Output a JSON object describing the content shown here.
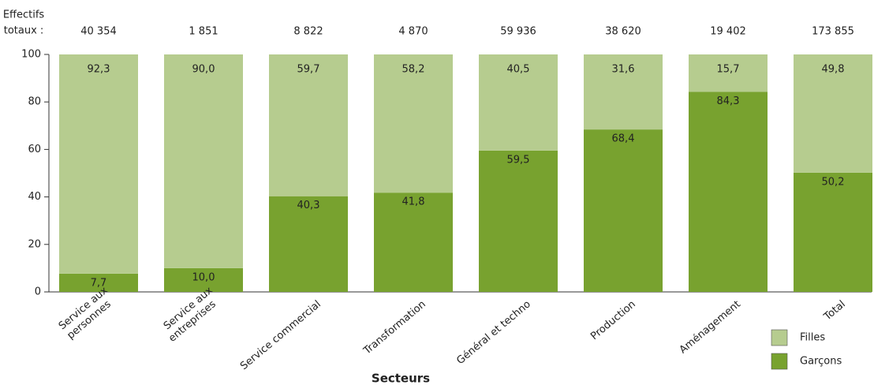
{
  "chart_data": {
    "type": "stacked_bar",
    "x_label": "Secteurs",
    "categories": [
      [
        "Service aux",
        "personnes"
      ],
      [
        "Service aux",
        "entreprises"
      ],
      [
        "Service commercial"
      ],
      [
        "Transformation"
      ],
      [
        "Général et techno"
      ],
      [
        "Production"
      ],
      [
        "Aménagement"
      ],
      [
        "Total"
      ]
    ],
    "series": [
      {
        "name": "Garçons",
        "color": "#78a22f",
        "values": [
          7.7,
          10.0,
          40.3,
          41.8,
          59.5,
          68.4,
          84.3,
          50.2
        ],
        "value_labels": [
          "7,7",
          "10,0",
          "40,3",
          "41,8",
          "59,5",
          "68,4",
          "84,3",
          "50,2"
        ]
      },
      {
        "name": "Filles",
        "color": "#b6cc8f",
        "values": [
          92.3,
          90.0,
          59.7,
          58.2,
          40.5,
          31.6,
          15.7,
          49.8
        ],
        "value_labels": [
          "92,3",
          "90,0",
          "59,7",
          "58,2",
          "40,5",
          "31,6",
          "15,7",
          "49,8"
        ]
      }
    ],
    "totals": {
      "name": [
        "Effectifs",
        "totaux :"
      ],
      "values": [
        40354,
        1851,
        8822,
        4870,
        59936,
        38620,
        19402,
        173855
      ],
      "value_labels": [
        "40 354",
        "1 851",
        "8 822",
        "4 870",
        "59 936",
        "38 620",
        "19 402",
        "173 855"
      ]
    },
    "ylim": [
      0,
      100
    ],
    "yticks": [
      0,
      20,
      40,
      60,
      80,
      100
    ],
    "grid": false,
    "legend": "bottom-right"
  }
}
